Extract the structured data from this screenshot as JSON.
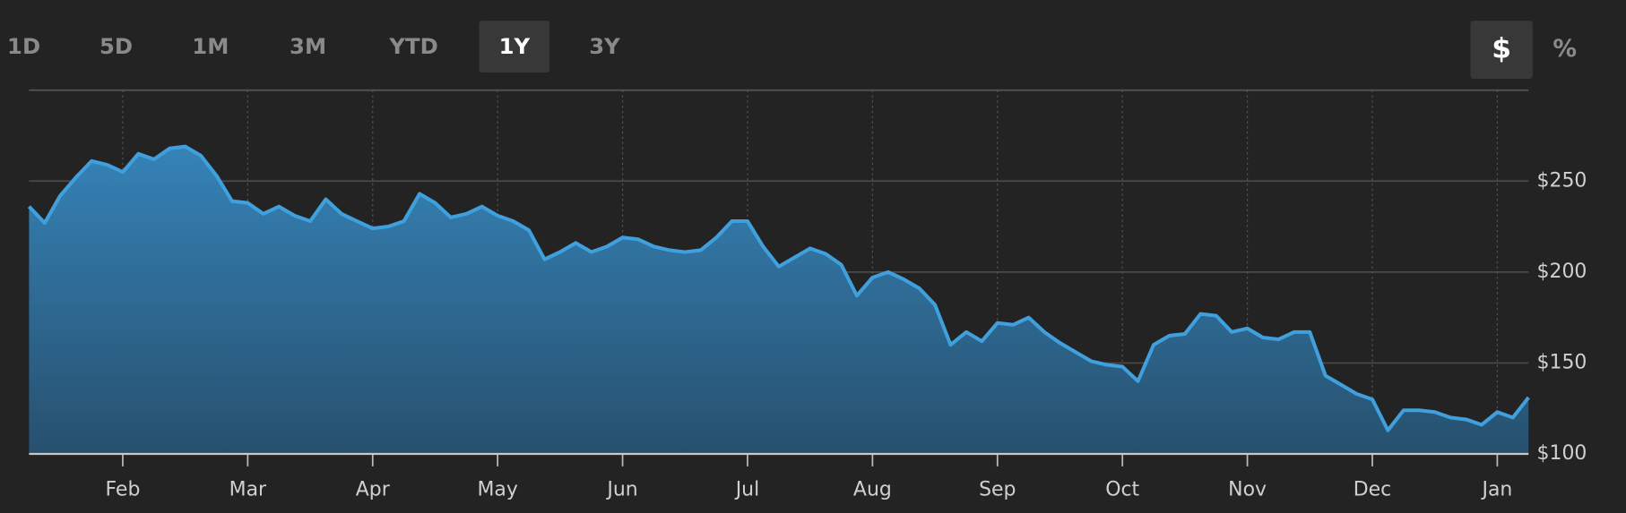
{
  "controls": {
    "ranges": [
      "1D",
      "5D",
      "1M",
      "3M",
      "YTD",
      "1Y",
      "3Y"
    ],
    "active_range_index": 5,
    "units": [
      "$",
      "%"
    ],
    "active_unit_index": 0
  },
  "chart_data": {
    "type": "area",
    "color": "#3fa0dd",
    "categories": [
      null,
      null,
      null,
      null,
      null,
      null,
      "Feb",
      null,
      null,
      null,
      null,
      null,
      null,
      null,
      "Mar",
      null,
      null,
      null,
      null,
      null,
      null,
      null,
      "Apr",
      null,
      null,
      null,
      null,
      null,
      null,
      null,
      "May",
      null,
      null,
      null,
      null,
      null,
      null,
      null,
      "Jun",
      null,
      null,
      null,
      null,
      null,
      null,
      null,
      "Jul",
      null,
      null,
      null,
      null,
      null,
      null,
      null,
      "Aug",
      null,
      null,
      null,
      null,
      null,
      null,
      null,
      "Sep",
      null,
      null,
      null,
      null,
      null,
      null,
      null,
      "Oct",
      null,
      null,
      null,
      null,
      null,
      null,
      null,
      "Nov",
      null,
      null,
      null,
      null,
      null,
      null,
      null,
      "Dec",
      null,
      null,
      null,
      null,
      null,
      null,
      null,
      "Jan",
      null,
      null
    ],
    "values": [
      236,
      227,
      242,
      252,
      261,
      259,
      255,
      265,
      262,
      268,
      269,
      264,
      253,
      239,
      238,
      232,
      236,
      231,
      228,
      240,
      232,
      228,
      224,
      225,
      228,
      243,
      238,
      230,
      232,
      236,
      231,
      228,
      223,
      207,
      211,
      216,
      211,
      214,
      219,
      218,
      214,
      212,
      211,
      212,
      219,
      228,
      228,
      214,
      203,
      208,
      213,
      210,
      204,
      187,
      197,
      200,
      196,
      191,
      182,
      160,
      167,
      162,
      172,
      171,
      175,
      167,
      161,
      156,
      151,
      149,
      148,
      140,
      160,
      165,
      166,
      177,
      176,
      167,
      169,
      164,
      163,
      167,
      167,
      143,
      138,
      133,
      130,
      113,
      124,
      124,
      123,
      120,
      119,
      116,
      123,
      120,
      131
    ],
    "ylim": [
      100,
      300
    ],
    "yticks": [
      {
        "value": 100,
        "label": "$100"
      },
      {
        "value": 150,
        "label": "$150"
      },
      {
        "value": 200,
        "label": "$200"
      },
      {
        "value": 250,
        "label": "$250"
      }
    ],
    "grid": true
  }
}
